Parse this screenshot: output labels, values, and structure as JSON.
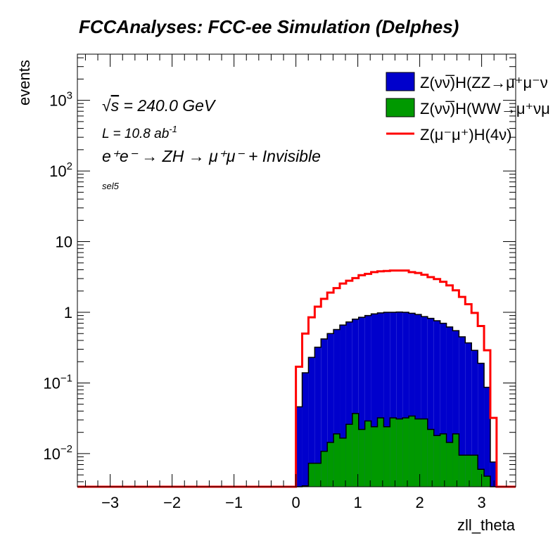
{
  "chart_data": {
    "type": "bar",
    "subtype": "stacked-histogram-with-line",
    "title": "FCCAnalyses: FCC-ee Simulation (Delphes)",
    "xlabel": "zll_theta",
    "ylabel": "events",
    "xlim": [
      -3.53,
      3.55
    ],
    "ylim": [
      0.0034,
      4500
    ],
    "yscale": "log",
    "grid": false,
    "x_ticks": [
      -3,
      -2,
      -1,
      0,
      1,
      2,
      3
    ],
    "x_tick_labels": [
      "−3",
      "−2",
      "−1",
      "0",
      "1",
      "2",
      "3"
    ],
    "y_ticks": [
      {
        "value": 0.01,
        "base": "10",
        "exp": "−2"
      },
      {
        "value": 0.1,
        "base": "10",
        "exp": "−1"
      },
      {
        "value": 1,
        "base": "1",
        "exp": ""
      },
      {
        "value": 10,
        "base": "10",
        "exp": ""
      },
      {
        "value": 100,
        "base": "10",
        "exp": "2"
      },
      {
        "value": 1000,
        "base": "10",
        "exp": "3"
      }
    ],
    "bin_edges_start": 0,
    "bin_width": 0.1013,
    "series": [
      {
        "name": "Z(νν̅)H(WW→μ⁺νμ",
        "style": "stacked-fill",
        "color": "#009900",
        "values": [
          0,
          0.0035,
          0.0073,
          0.0073,
          0.0108,
          0.0144,
          0.019,
          0.0166,
          0.026,
          0.037,
          0.022,
          0.029,
          0.024,
          0.032,
          0.024,
          0.032,
          0.031,
          0.032,
          0.034,
          0.031,
          0.031,
          0.022,
          0.018,
          0.019,
          0.0144,
          0.019,
          0.0095,
          0.0095,
          0.0095,
          0.006,
          0.0048,
          0
        ]
      },
      {
        "name": "Z(νν̅)H(ZZ→μ⁺μ⁻ν",
        "style": "stacked-fill",
        "color": "#0000cc",
        "values": [
          0.046,
          0.136,
          0.223,
          0.313,
          0.409,
          0.486,
          0.551,
          0.643,
          0.704,
          0.763,
          0.828,
          0.871,
          0.926,
          0.948,
          0.976,
          0.968,
          0.979,
          0.968,
          0.936,
          0.899,
          0.839,
          0.798,
          0.742,
          0.681,
          0.606,
          0.531,
          0.44,
          0.36,
          0.28,
          0.184,
          0.082,
          0.0076
        ]
      },
      {
        "name": "Z(μ⁻μ⁺)H(4ν)",
        "style": "line",
        "color": "#ff0000",
        "values": [
          0.17,
          0.5,
          0.85,
          1.2,
          1.55,
          1.9,
          2.2,
          2.55,
          2.8,
          3.05,
          3.35,
          3.5,
          3.7,
          3.8,
          3.85,
          3.9,
          3.9,
          3.9,
          3.7,
          3.6,
          3.4,
          3.15,
          2.95,
          2.7,
          2.4,
          2.05,
          1.65,
          1.3,
          0.98,
          0.64,
          0.29,
          0.032
        ]
      }
    ],
    "legend": {
      "placement": "top-right",
      "entries": [
        {
          "label": "Z(νν̅)H(ZZ→μ⁺μ⁻ν",
          "color": "#0000cc",
          "kind": "fill"
        },
        {
          "label": "Z(νν̅)H(WW→μ⁺νμ",
          "color": "#009900",
          "kind": "fill"
        },
        {
          "label": "Z(μ⁻μ⁺)H(4ν)",
          "color": "#ff0000",
          "kind": "line"
        }
      ]
    },
    "annotations": {
      "sqrt_s": "s",
      "energy": " = 240.0 GeV",
      "lumi": "L = 10.8 ab",
      "lumi_exp": "-1",
      "process": "e⁺e⁻ → ZH → μ⁺μ⁻ + Invisible",
      "selection": "sel5"
    }
  }
}
